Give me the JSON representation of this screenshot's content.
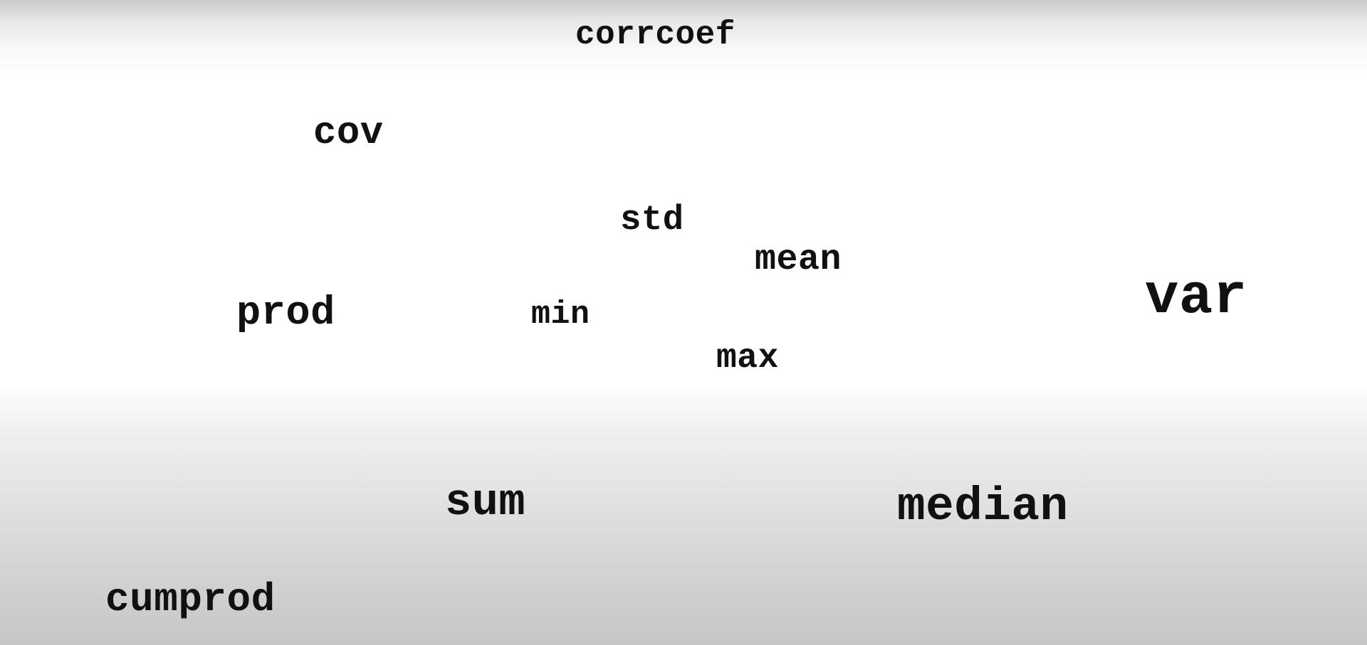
{
  "background": {
    "edge_color": "#c9c9c9",
    "center_color": "#ffffff"
  },
  "text_color": "#111111",
  "words": {
    "corrcoef": "corrcoef",
    "cov": "cov",
    "std": "std",
    "mean": "mean",
    "var": "var",
    "prod": "prod",
    "min": "min",
    "max": "max",
    "sum": "sum",
    "median": "median",
    "cumprod": "cumprod"
  }
}
